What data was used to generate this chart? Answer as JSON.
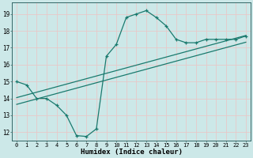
{
  "x": [
    0,
    1,
    2,
    3,
    4,
    5,
    6,
    7,
    8,
    9,
    10,
    11,
    12,
    13,
    14,
    15,
    16,
    17,
    18,
    19,
    20,
    21,
    22,
    23
  ],
  "humidex": [
    15.0,
    14.8,
    14.0,
    14.0,
    13.6,
    13.0,
    11.8,
    11.75,
    12.2,
    16.5,
    17.2,
    18.8,
    19.0,
    19.2,
    18.8,
    18.3,
    17.5,
    17.3,
    17.3,
    17.5,
    17.5,
    17.5,
    17.5,
    17.7
  ],
  "reg_line": [
    14.05,
    14.21,
    14.37,
    14.53,
    14.69,
    14.85,
    15.01,
    15.17,
    15.33,
    15.49,
    15.65,
    15.81,
    15.97,
    16.13,
    16.29,
    16.45,
    16.61,
    16.77,
    16.93,
    17.09,
    17.25,
    17.41,
    17.57,
    17.73
  ],
  "reg_line2": [
    13.65,
    13.81,
    13.97,
    14.13,
    14.29,
    14.45,
    14.61,
    14.77,
    14.93,
    15.09,
    15.25,
    15.41,
    15.57,
    15.73,
    15.89,
    16.05,
    16.21,
    16.37,
    16.53,
    16.69,
    16.85,
    17.01,
    17.17,
    17.33
  ],
  "line_color": "#1a7a6e",
  "bg_color": "#cce8e8",
  "grid_color": "#e8c8c8",
  "xlabel": "Humidex (Indice chaleur)",
  "ylim": [
    11.5,
    19.7
  ],
  "xlim": [
    -0.5,
    23.5
  ],
  "yticks": [
    12,
    13,
    14,
    15,
    16,
    17,
    18,
    19
  ],
  "xticks": [
    0,
    1,
    2,
    3,
    4,
    5,
    6,
    7,
    8,
    9,
    10,
    11,
    12,
    13,
    14,
    15,
    16,
    17,
    18,
    19,
    20,
    21,
    22,
    23
  ]
}
